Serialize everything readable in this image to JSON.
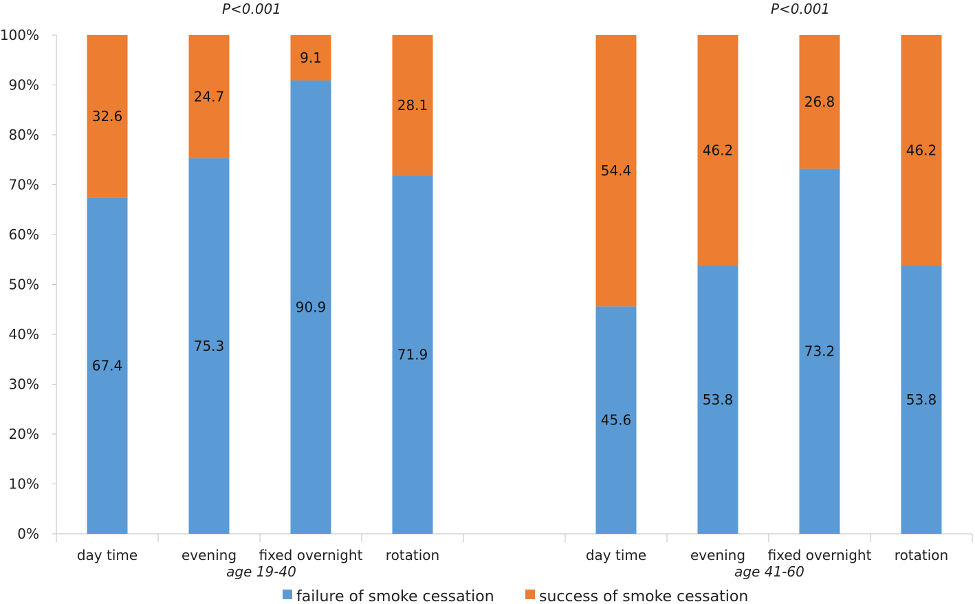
{
  "chart_data": {
    "type": "bar",
    "stacked": true,
    "y_tick_labels": [
      "0%",
      "10%",
      "20%",
      "30%",
      "40%",
      "50%",
      "60%",
      "70%",
      "80%",
      "90%",
      "100%"
    ],
    "ylim": [
      0,
      100
    ],
    "groups": [
      {
        "label": "age 19-40",
        "p_value": "P<0.001",
        "categories": [
          "day time",
          "evening",
          "fixed overnight",
          "rotation"
        ],
        "failure": [
          "67.4",
          "75.3",
          "90.9",
          "71.9"
        ],
        "success": [
          "32.6",
          "24.7",
          "9.1",
          "28.1"
        ]
      },
      {
        "label": "age 41-60",
        "p_value": "P<0.001",
        "categories": [
          "day time",
          "evening",
          "fixed overnight",
          "rotation"
        ],
        "failure": [
          "45.6",
          "53.8",
          "73.2",
          "53.8"
        ],
        "success": [
          "54.4",
          "46.2",
          "26.8",
          "46.2"
        ]
      }
    ],
    "series": [
      {
        "name": "failure of smoke cessation",
        "color": "#5b9bd5"
      },
      {
        "name": "success of smoke cessation",
        "color": "#ed7d31"
      }
    ],
    "legend_position": "bottom"
  }
}
